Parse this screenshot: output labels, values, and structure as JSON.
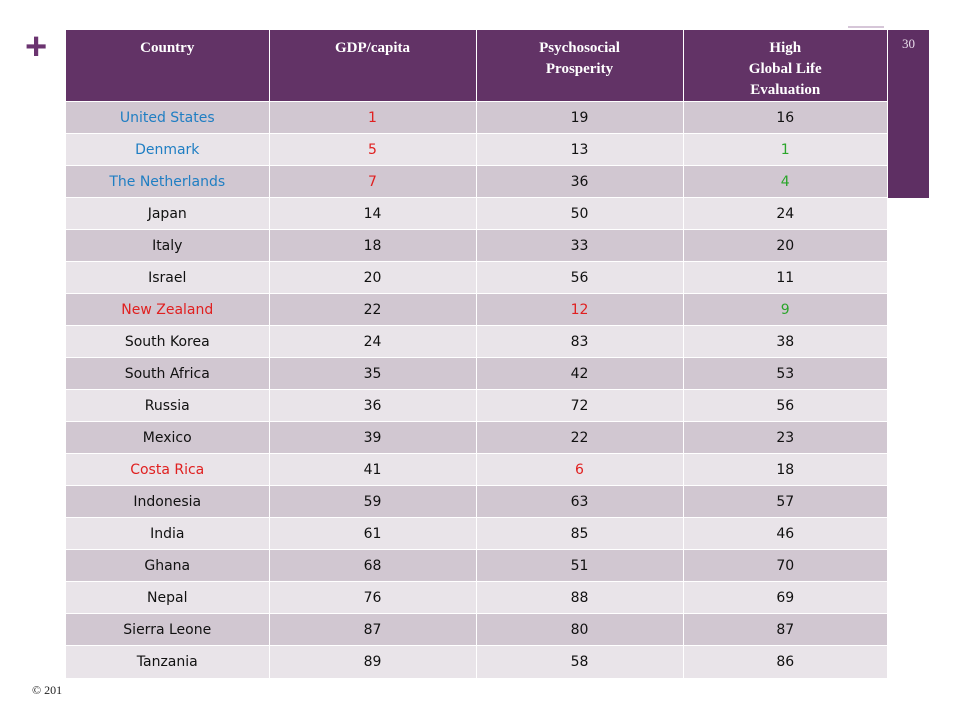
{
  "slide": {
    "plus": "+",
    "slide_number": "30",
    "copyright": "© 201"
  },
  "colors": {
    "header_bg": "#623366",
    "row_dark": "#d1c7d1",
    "row_light": "#e9e4e9",
    "blue": "#1f7ec3",
    "red": "#e02020",
    "green": "#2aa52a",
    "default": "#111111"
  },
  "table": {
    "headers": [
      [
        "Country"
      ],
      [
        "GDP/capita"
      ],
      [
        "Psychosocial",
        "Prosperity"
      ],
      [
        "High",
        "Global Life",
        "Evaluation"
      ]
    ],
    "rows": [
      {
        "cells": [
          "United States",
          "1",
          "19",
          "16"
        ],
        "colors": [
          "blue",
          "red",
          "default",
          "default"
        ]
      },
      {
        "cells": [
          "Denmark",
          "5",
          "13",
          "1"
        ],
        "colors": [
          "blue",
          "red",
          "default",
          "green"
        ]
      },
      {
        "cells": [
          "The Netherlands",
          "7",
          "36",
          "4"
        ],
        "colors": [
          "blue",
          "red",
          "default",
          "green"
        ]
      },
      {
        "cells": [
          "Japan",
          "14",
          "50",
          "24"
        ],
        "colors": [
          "default",
          "default",
          "default",
          "default"
        ]
      },
      {
        "cells": [
          "Italy",
          "18",
          "33",
          "20"
        ],
        "colors": [
          "default",
          "default",
          "default",
          "default"
        ]
      },
      {
        "cells": [
          "Israel",
          "20",
          "56",
          "11"
        ],
        "colors": [
          "default",
          "default",
          "default",
          "default"
        ]
      },
      {
        "cells": [
          "New Zealand",
          "22",
          "12",
          "9"
        ],
        "colors": [
          "red",
          "default",
          "red",
          "green"
        ]
      },
      {
        "cells": [
          "South Korea",
          "24",
          "83",
          "38"
        ],
        "colors": [
          "default",
          "default",
          "default",
          "default"
        ]
      },
      {
        "cells": [
          "South Africa",
          "35",
          "42",
          "53"
        ],
        "colors": [
          "default",
          "default",
          "default",
          "default"
        ]
      },
      {
        "cells": [
          "Russia",
          "36",
          "72",
          "56"
        ],
        "colors": [
          "default",
          "default",
          "default",
          "default"
        ]
      },
      {
        "cells": [
          "Mexico",
          "39",
          "22",
          "23"
        ],
        "colors": [
          "default",
          "default",
          "default",
          "default"
        ]
      },
      {
        "cells": [
          "Costa Rica",
          "41",
          "6",
          "18"
        ],
        "colors": [
          "red",
          "default",
          "red",
          "default"
        ]
      },
      {
        "cells": [
          "Indonesia",
          "59",
          "63",
          "57"
        ],
        "colors": [
          "default",
          "default",
          "default",
          "default"
        ]
      },
      {
        "cells": [
          "India",
          "61",
          "85",
          "46"
        ],
        "colors": [
          "default",
          "default",
          "default",
          "default"
        ]
      },
      {
        "cells": [
          "Ghana",
          "68",
          "51",
          "70"
        ],
        "colors": [
          "default",
          "default",
          "default",
          "default"
        ]
      },
      {
        "cells": [
          "Nepal",
          "76",
          "88",
          "69"
        ],
        "colors": [
          "default",
          "default",
          "default",
          "default"
        ]
      },
      {
        "cells": [
          "Sierra Leone",
          "87",
          "80",
          "87"
        ],
        "colors": [
          "default",
          "default",
          "default",
          "default"
        ]
      },
      {
        "cells": [
          "Tanzania",
          "89",
          "58",
          "86"
        ],
        "colors": [
          "default",
          "default",
          "default",
          "default"
        ]
      }
    ]
  }
}
